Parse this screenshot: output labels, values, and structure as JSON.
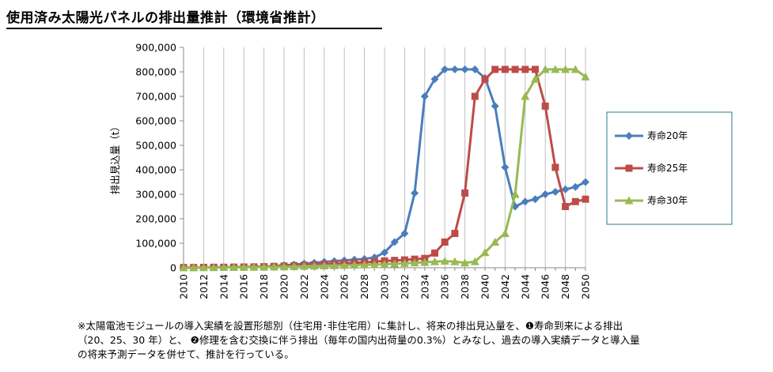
{
  "header": {
    "title": "使用済み太陽光パネルの排出量推計（環境省推計）"
  },
  "note": {
    "line1": "※太陽電池モジュールの導入実績を設置形態別（住宅用･非住宅用）に集計し、将来の排出見込量を、❶寿命到来による排出",
    "line2": "（20、25、30 年）と、 ❷修理を含む交換に伴う排出（毎年の国内出荷量の0.3%）とみなし、過去の導入実績データと導入量",
    "line3": "の将来予測データを併せて、推計を行っている。"
  },
  "chart_data": {
    "type": "line",
    "title": "",
    "xlabel": "",
    "ylabel": "排出見込量（t）",
    "xlim": [
      2010,
      2050
    ],
    "ylim": [
      0,
      900000
    ],
    "y_ticks": [
      0,
      100000,
      200000,
      300000,
      400000,
      500000,
      600000,
      700000,
      800000,
      900000
    ],
    "y_tick_labels": [
      "0",
      "100,000",
      "200,000",
      "300,000",
      "400,000",
      "500,000",
      "600,000",
      "700,000",
      "800,000",
      "900,000"
    ],
    "x_ticks": [
      2010,
      2012,
      2014,
      2016,
      2018,
      2020,
      2022,
      2024,
      2026,
      2028,
      2030,
      2032,
      2034,
      2036,
      2038,
      2040,
      2042,
      2044,
      2046,
      2048,
      2050
    ],
    "x_tick_labels": [
      "2010",
      "2012",
      "2014",
      "2016",
      "2018",
      "2020",
      "2022",
      "2024",
      "2026",
      "2028",
      "2030",
      "2032",
      "2034",
      "2036",
      "2038",
      "2040",
      "2042",
      "2044",
      "2046",
      "2048",
      "2050"
    ],
    "grid": "vertical",
    "legend": "right",
    "x": [
      2010,
      2011,
      2012,
      2013,
      2014,
      2015,
      2016,
      2017,
      2018,
      2019,
      2020,
      2021,
      2022,
      2023,
      2024,
      2025,
      2026,
      2027,
      2028,
      2029,
      2030,
      2031,
      2032,
      2033,
      2034,
      2035,
      2036,
      2037,
      2038,
      2039,
      2040,
      2041,
      2042,
      2043,
      2044,
      2045,
      2046,
      2047,
      2048,
      2049,
      2050
    ],
    "series": [
      {
        "name": "寿命20年",
        "color": "#4A7EBB",
        "marker": "diamond",
        "values": [
          1000,
          1000,
          1500,
          2000,
          2500,
          3000,
          3500,
          4000,
          5000,
          7000,
          10000,
          13000,
          17000,
          20000,
          24000,
          27000,
          30000,
          33000,
          36000,
          42000,
          62000,
          105000,
          140000,
          305000,
          700000,
          770000,
          810000,
          810000,
          810000,
          810000,
          775000,
          660000,
          410000,
          250000,
          270000,
          280000,
          300000,
          310000,
          320000,
          330000,
          350000
        ]
      },
      {
        "name": "寿命25年",
        "color": "#BE4B48",
        "marker": "square",
        "values": [
          1000,
          1000,
          1500,
          2000,
          2000,
          2500,
          3000,
          3500,
          4500,
          5500,
          7000,
          8500,
          10000,
          12000,
          14000,
          16000,
          18000,
          20000,
          22000,
          25000,
          28000,
          30000,
          32000,
          35000,
          38000,
          60000,
          105000,
          140000,
          305000,
          700000,
          770000,
          810000,
          810000,
          810000,
          810000,
          810000,
          660000,
          410000,
          250000,
          270000,
          280000
        ]
      },
      {
        "name": "寿命30年",
        "color": "#98B954",
        "marker": "triangle",
        "values": [
          500,
          500,
          1000,
          1000,
          1500,
          1500,
          2000,
          2500,
          3000,
          3500,
          4000,
          5000,
          6000,
          7000,
          8000,
          9000,
          10000,
          11000,
          12000,
          13000,
          14000,
          16000,
          18000,
          20000,
          22000,
          25000,
          27000,
          25000,
          20000,
          25000,
          62000,
          105000,
          140000,
          300000,
          700000,
          770000,
          810000,
          810000,
          810000,
          810000,
          780000
        ]
      }
    ]
  }
}
